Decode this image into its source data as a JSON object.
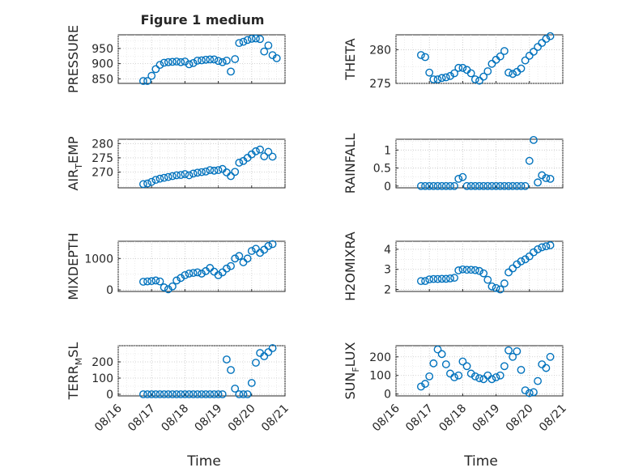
{
  "figure": {
    "title": "Figure 1 medium",
    "x_axis_label": "Time"
  },
  "colors": {
    "marker": "#0072bd",
    "axis": "#262626",
    "grid": "#c4c4c4"
  },
  "chart_data": [
    {
      "type": "scatter",
      "ylabel": "PRESSURE",
      "marker": "circle",
      "grid": true,
      "x_ticks": [
        "08/16",
        "08/17",
        "08/18",
        "08/19",
        "08/20",
        "08/21"
      ],
      "ylim": [
        835,
        995
      ],
      "yticks": [
        850,
        900,
        950
      ],
      "show_x_tick_labels": false,
      "points": [
        [
          "08/16 18:00",
          843
        ],
        [
          "08/16 21:00",
          843
        ],
        [
          "08/17 00:00",
          860
        ],
        [
          "08/17 03:00",
          882
        ],
        [
          "08/17 06:00",
          896
        ],
        [
          "08/17 09:00",
          903
        ],
        [
          "08/17 12:00",
          905
        ],
        [
          "08/17 15:00",
          906
        ],
        [
          "08/17 18:00",
          907
        ],
        [
          "08/17 21:00",
          905
        ],
        [
          "08/18 00:00",
          907
        ],
        [
          "08/18 03:00",
          898
        ],
        [
          "08/18 06:00",
          902
        ],
        [
          "08/18 09:00",
          910
        ],
        [
          "08/18 12:00",
          911
        ],
        [
          "08/18 15:00",
          913
        ],
        [
          "08/18 18:00",
          914
        ],
        [
          "08/18 21:00",
          914
        ],
        [
          "08/19 00:00",
          909
        ],
        [
          "08/19 03:00",
          905
        ],
        [
          "08/19 06:00",
          910
        ],
        [
          "08/19 09:00",
          874
        ],
        [
          "08/19 12:00",
          915
        ],
        [
          "08/19 15:00",
          968
        ],
        [
          "08/19 18:00",
          972
        ],
        [
          "08/19 21:00",
          978
        ],
        [
          "08/20 00:00",
          982
        ],
        [
          "08/20 03:00",
          983
        ],
        [
          "08/20 06:00",
          981
        ],
        [
          "08/20 09:00",
          940
        ],
        [
          "08/20 12:00",
          960
        ],
        [
          "08/20 15:00",
          928
        ],
        [
          "08/20 18:00",
          918
        ]
      ]
    },
    {
      "type": "scatter",
      "ylabel": "THETA",
      "marker": "circle",
      "grid": true,
      "x_ticks": [
        "08/16",
        "08/17",
        "08/18",
        "08/19",
        "08/20",
        "08/21"
      ],
      "ylim": [
        275,
        282.2
      ],
      "yticks": [
        275,
        280
      ],
      "show_x_tick_labels": false,
      "points": [
        [
          "08/16 18:00",
          279.2
        ],
        [
          "08/16 21:00",
          278.9
        ],
        [
          "08/17 00:00",
          276.6
        ],
        [
          "08/17 03:00",
          275.6
        ],
        [
          "08/17 06:00",
          275.6
        ],
        [
          "08/17 09:00",
          275.8
        ],
        [
          "08/17 12:00",
          275.9
        ],
        [
          "08/17 15:00",
          276.1
        ],
        [
          "08/17 18:00",
          276.5
        ],
        [
          "08/17 21:00",
          277.3
        ],
        [
          "08/18 00:00",
          277.3
        ],
        [
          "08/18 03:00",
          277.0
        ],
        [
          "08/18 06:00",
          276.5
        ],
        [
          "08/18 09:00",
          275.6
        ],
        [
          "08/18 12:00",
          275.4
        ],
        [
          "08/18 15:00",
          276.0
        ],
        [
          "08/18 18:00",
          276.8
        ],
        [
          "08/18 21:00",
          277.9
        ],
        [
          "08/19 00:00",
          278.5
        ],
        [
          "08/19 03:00",
          279.0
        ],
        [
          "08/19 06:00",
          279.8
        ],
        [
          "08/19 09:00",
          276.6
        ],
        [
          "08/19 12:00",
          276.4
        ],
        [
          "08/19 15:00",
          276.7
        ],
        [
          "08/19 18:00",
          277.2
        ],
        [
          "08/19 21:00",
          278.4
        ],
        [
          "08/20 00:00",
          279.1
        ],
        [
          "08/20 03:00",
          279.7
        ],
        [
          "08/20 06:00",
          280.4
        ],
        [
          "08/20 09:00",
          281.0
        ],
        [
          "08/20 12:00",
          281.6
        ],
        [
          "08/20 15:00",
          282.0
        ]
      ]
    },
    {
      "type": "scatter",
      "ylabel": "AIR_TEMP",
      "marker": "circle",
      "grid": true,
      "x_ticks": [
        "08/16",
        "08/17",
        "08/18",
        "08/19",
        "08/20",
        "08/21"
      ],
      "ylim": [
        264.5,
        281.5
      ],
      "yticks": [
        270,
        275,
        280
      ],
      "show_x_tick_labels": false,
      "points": [
        [
          "08/16 18:00",
          265.8
        ],
        [
          "08/16 21:00",
          266.0
        ],
        [
          "08/17 00:00",
          266.6
        ],
        [
          "08/17 03:00",
          267.3
        ],
        [
          "08/17 06:00",
          267.7
        ],
        [
          "08/17 09:00",
          268.0
        ],
        [
          "08/17 12:00",
          268.3
        ],
        [
          "08/17 15:00",
          268.6
        ],
        [
          "08/17 18:00",
          268.9
        ],
        [
          "08/17 21:00",
          269.0
        ],
        [
          "08/18 00:00",
          269.3
        ],
        [
          "08/18 03:00",
          268.9
        ],
        [
          "08/18 06:00",
          269.5
        ],
        [
          "08/18 09:00",
          269.8
        ],
        [
          "08/18 12:00",
          270.0
        ],
        [
          "08/18 15:00",
          270.2
        ],
        [
          "08/18 18:00",
          270.7
        ],
        [
          "08/18 21:00",
          270.5
        ],
        [
          "08/19 00:00",
          270.7
        ],
        [
          "08/19 03:00",
          271.1
        ],
        [
          "08/19 06:00",
          269.9
        ],
        [
          "08/19 09:00",
          268.6
        ],
        [
          "08/19 12:00",
          270.1
        ],
        [
          "08/19 15:00",
          273.3
        ],
        [
          "08/19 18:00",
          273.9
        ],
        [
          "08/19 21:00",
          275.0
        ],
        [
          "08/20 00:00",
          276.2
        ],
        [
          "08/20 03:00",
          277.3
        ],
        [
          "08/20 06:00",
          277.9
        ],
        [
          "08/20 09:00",
          275.5
        ],
        [
          "08/20 12:00",
          277.1
        ],
        [
          "08/20 15:00",
          275.4
        ]
      ]
    },
    {
      "type": "scatter",
      "ylabel": "RAINFALL",
      "marker": "circle",
      "grid": true,
      "x_ticks": [
        "08/16",
        "08/17",
        "08/18",
        "08/19",
        "08/20",
        "08/21"
      ],
      "ylim": [
        -0.05,
        1.3
      ],
      "yticks": [
        0,
        0.5,
        1
      ],
      "show_x_tick_labels": false,
      "points": [
        [
          "08/16 18:00",
          0
        ],
        [
          "08/16 21:00",
          0
        ],
        [
          "08/17 00:00",
          0
        ],
        [
          "08/17 03:00",
          0
        ],
        [
          "08/17 06:00",
          0
        ],
        [
          "08/17 09:00",
          0
        ],
        [
          "08/17 12:00",
          0
        ],
        [
          "08/17 15:00",
          0
        ],
        [
          "08/17 18:00",
          0
        ],
        [
          "08/17 21:00",
          0.2
        ],
        [
          "08/18 00:00",
          0.25
        ],
        [
          "08/18 03:00",
          0
        ],
        [
          "08/18 06:00",
          0
        ],
        [
          "08/18 09:00",
          0
        ],
        [
          "08/18 12:00",
          0
        ],
        [
          "08/18 15:00",
          0
        ],
        [
          "08/18 18:00",
          0
        ],
        [
          "08/18 21:00",
          0
        ],
        [
          "08/19 00:00",
          0
        ],
        [
          "08/19 03:00",
          0
        ],
        [
          "08/19 06:00",
          0
        ],
        [
          "08/19 09:00",
          0
        ],
        [
          "08/19 12:00",
          0
        ],
        [
          "08/19 15:00",
          0
        ],
        [
          "08/19 18:00",
          0
        ],
        [
          "08/19 21:00",
          0
        ],
        [
          "08/20 00:00",
          0.7
        ],
        [
          "08/20 03:00",
          1.28
        ],
        [
          "08/20 06:00",
          0.1
        ],
        [
          "08/20 09:00",
          0.3
        ],
        [
          "08/20 12:00",
          0.22
        ],
        [
          "08/20 15:00",
          0.2
        ]
      ]
    },
    {
      "type": "scatter",
      "ylabel": "MIXDEPTH",
      "marker": "circle",
      "grid": true,
      "x_ticks": [
        "08/16",
        "08/17",
        "08/18",
        "08/19",
        "08/20",
        "08/21"
      ],
      "ylim": [
        -50,
        1550
      ],
      "yticks": [
        0,
        1000
      ],
      "show_x_tick_labels": false,
      "points": [
        [
          "08/16 18:00",
          260
        ],
        [
          "08/16 21:00",
          270
        ],
        [
          "08/17 00:00",
          280
        ],
        [
          "08/17 03:00",
          300
        ],
        [
          "08/17 06:00",
          270
        ],
        [
          "08/17 09:00",
          80
        ],
        [
          "08/17 12:00",
          20
        ],
        [
          "08/17 15:00",
          110
        ],
        [
          "08/17 18:00",
          300
        ],
        [
          "08/17 21:00",
          380
        ],
        [
          "08/18 00:00",
          470
        ],
        [
          "08/18 03:00",
          520
        ],
        [
          "08/18 06:00",
          540
        ],
        [
          "08/18 09:00",
          560
        ],
        [
          "08/18 12:00",
          520
        ],
        [
          "08/18 15:00",
          600
        ],
        [
          "08/18 18:00",
          700
        ],
        [
          "08/18 21:00",
          580
        ],
        [
          "08/19 00:00",
          470
        ],
        [
          "08/19 03:00",
          560
        ],
        [
          "08/19 06:00",
          680
        ],
        [
          "08/19 09:00",
          760
        ],
        [
          "08/19 12:00",
          1000
        ],
        [
          "08/19 15:00",
          1080
        ],
        [
          "08/19 18:00",
          880
        ],
        [
          "08/19 21:00",
          1000
        ],
        [
          "08/20 00:00",
          1240
        ],
        [
          "08/20 03:00",
          1310
        ],
        [
          "08/20 06:00",
          1180
        ],
        [
          "08/20 09:00",
          1280
        ],
        [
          "08/20 12:00",
          1400
        ],
        [
          "08/20 15:00",
          1460
        ]
      ]
    },
    {
      "type": "scatter",
      "ylabel": "H2OMIXRA",
      "marker": "circle",
      "grid": true,
      "x_ticks": [
        "08/16",
        "08/17",
        "08/18",
        "08/19",
        "08/20",
        "08/21"
      ],
      "ylim": [
        1.9,
        4.4
      ],
      "yticks": [
        2,
        3,
        4
      ],
      "show_x_tick_labels": false,
      "points": [
        [
          "08/16 18:00",
          2.42
        ],
        [
          "08/16 21:00",
          2.42
        ],
        [
          "08/17 00:00",
          2.5
        ],
        [
          "08/17 03:00",
          2.52
        ],
        [
          "08/17 06:00",
          2.52
        ],
        [
          "08/17 09:00",
          2.53
        ],
        [
          "08/17 12:00",
          2.53
        ],
        [
          "08/17 15:00",
          2.55
        ],
        [
          "08/17 18:00",
          2.58
        ],
        [
          "08/17 21:00",
          2.95
        ],
        [
          "08/18 00:00",
          3.0
        ],
        [
          "08/18 03:00",
          2.98
        ],
        [
          "08/18 06:00",
          2.98
        ],
        [
          "08/18 09:00",
          2.96
        ],
        [
          "08/18 12:00",
          2.92
        ],
        [
          "08/18 15:00",
          2.8
        ],
        [
          "08/18 18:00",
          2.48
        ],
        [
          "08/18 21:00",
          2.15
        ],
        [
          "08/19 00:00",
          2.07
        ],
        [
          "08/19 03:00",
          2.0
        ],
        [
          "08/19 06:00",
          2.3
        ],
        [
          "08/19 09:00",
          2.85
        ],
        [
          "08/19 12:00",
          3.05
        ],
        [
          "08/19 15:00",
          3.25
        ],
        [
          "08/19 18:00",
          3.4
        ],
        [
          "08/19 21:00",
          3.5
        ],
        [
          "08/20 00:00",
          3.65
        ],
        [
          "08/20 03:00",
          3.85
        ],
        [
          "08/20 06:00",
          4.0
        ],
        [
          "08/20 09:00",
          4.1
        ],
        [
          "08/20 12:00",
          4.15
        ],
        [
          "08/20 15:00",
          4.2
        ]
      ]
    },
    {
      "type": "scatter",
      "ylabel": "TERR_MSL",
      "marker": "circle",
      "grid": true,
      "x_ticks": [
        "08/16",
        "08/17",
        "08/18",
        "08/19",
        "08/20",
        "08/21"
      ],
      "ylim": [
        -10,
        300
      ],
      "yticks": [
        0,
        100,
        200
      ],
      "show_x_tick_labels": true,
      "points": [
        [
          "08/16 18:00",
          0
        ],
        [
          "08/16 21:00",
          0
        ],
        [
          "08/17 00:00",
          0
        ],
        [
          "08/17 03:00",
          0
        ],
        [
          "08/17 06:00",
          0
        ],
        [
          "08/17 09:00",
          0
        ],
        [
          "08/17 12:00",
          0
        ],
        [
          "08/17 15:00",
          0
        ],
        [
          "08/17 18:00",
          0
        ],
        [
          "08/17 21:00",
          0
        ],
        [
          "08/18 00:00",
          0
        ],
        [
          "08/18 03:00",
          0
        ],
        [
          "08/18 06:00",
          0
        ],
        [
          "08/18 09:00",
          0
        ],
        [
          "08/18 12:00",
          0
        ],
        [
          "08/18 15:00",
          0
        ],
        [
          "08/18 18:00",
          0
        ],
        [
          "08/18 21:00",
          0
        ],
        [
          "08/19 00:00",
          0
        ],
        [
          "08/19 03:00",
          0
        ],
        [
          "08/19 06:00",
          215
        ],
        [
          "08/19 09:00",
          150
        ],
        [
          "08/19 12:00",
          35
        ],
        [
          "08/19 15:00",
          0
        ],
        [
          "08/19 18:00",
          0
        ],
        [
          "08/19 21:00",
          0
        ],
        [
          "08/20 00:00",
          70
        ],
        [
          "08/20 03:00",
          195
        ],
        [
          "08/20 06:00",
          255
        ],
        [
          "08/20 09:00",
          235
        ],
        [
          "08/20 12:00",
          260
        ],
        [
          "08/20 15:00",
          285
        ]
      ]
    },
    {
      "type": "scatter",
      "ylabel": "SUN_FLUX",
      "marker": "circle",
      "grid": true,
      "x_ticks": [
        "08/16",
        "08/17",
        "08/18",
        "08/19",
        "08/20",
        "08/21"
      ],
      "ylim": [
        -10,
        260
      ],
      "yticks": [
        0,
        100,
        200
      ],
      "show_x_tick_labels": true,
      "points": [
        [
          "08/16 18:00",
          40
        ],
        [
          "08/16 21:00",
          55
        ],
        [
          "08/17 00:00",
          95
        ],
        [
          "08/17 03:00",
          165
        ],
        [
          "08/17 06:00",
          240
        ],
        [
          "08/17 09:00",
          215
        ],
        [
          "08/17 12:00",
          160
        ],
        [
          "08/17 15:00",
          110
        ],
        [
          "08/17 18:00",
          90
        ],
        [
          "08/17 21:00",
          100
        ],
        [
          "08/18 00:00",
          175
        ],
        [
          "08/18 03:00",
          150
        ],
        [
          "08/18 06:00",
          110
        ],
        [
          "08/18 09:00",
          95
        ],
        [
          "08/18 12:00",
          85
        ],
        [
          "08/18 15:00",
          80
        ],
        [
          "08/18 18:00",
          100
        ],
        [
          "08/18 21:00",
          80
        ],
        [
          "08/19 00:00",
          90
        ],
        [
          "08/19 03:00",
          100
        ],
        [
          "08/19 06:00",
          150
        ],
        [
          "08/19 09:00",
          235
        ],
        [
          "08/19 12:00",
          200
        ],
        [
          "08/19 15:00",
          230
        ],
        [
          "08/19 18:00",
          130
        ],
        [
          "08/19 21:00",
          20
        ],
        [
          "08/20 00:00",
          5
        ],
        [
          "08/20 03:00",
          10
        ],
        [
          "08/20 06:00",
          70
        ],
        [
          "08/20 09:00",
          160
        ],
        [
          "08/20 12:00",
          140
        ],
        [
          "08/20 15:00",
          200
        ]
      ]
    }
  ]
}
